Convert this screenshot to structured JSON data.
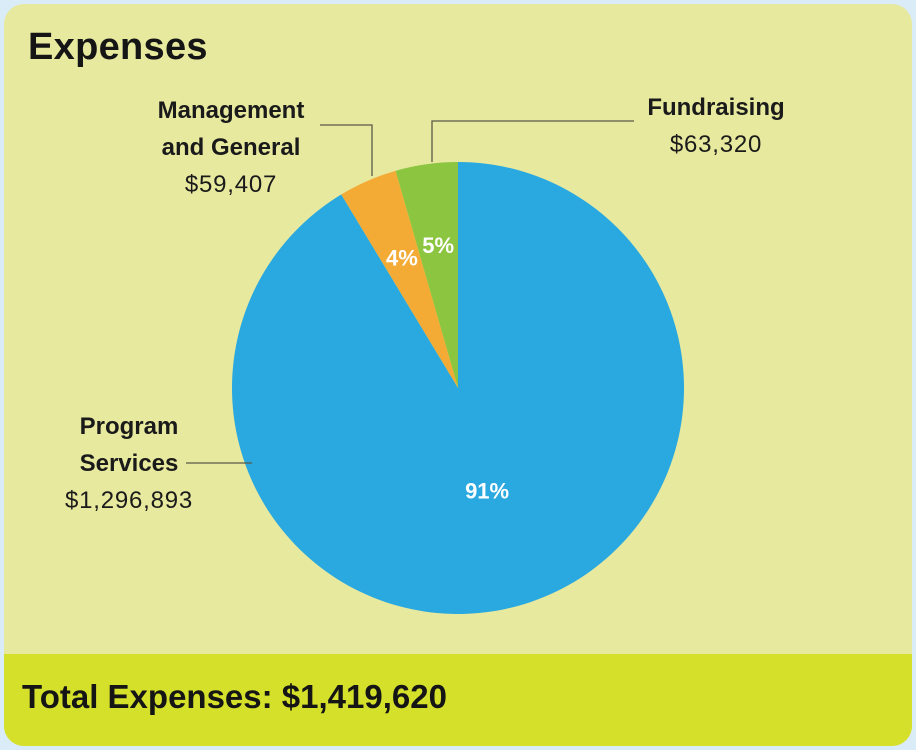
{
  "header": {
    "title": "Expenses"
  },
  "footer": {
    "total": "Total Expenses: $1,419,620"
  },
  "labels": {
    "management": {
      "line1": "Management",
      "line2": "and General",
      "amount": "$59,407"
    },
    "fundraising": {
      "line1": "Fundraising",
      "amount": "$63,320"
    },
    "program": {
      "line1": "Program",
      "line2": "Services",
      "amount": "$1,296,893"
    }
  },
  "colors": {
    "program": "#2aa8e0",
    "management": "#f4ab36",
    "fundraising": "#8cc53f",
    "card_bg": "#e7e99f",
    "footer_bg": "#d4e02a"
  },
  "chart_data": {
    "type": "pie",
    "title": "Expenses",
    "slices": [
      {
        "name": "Fundraising",
        "value": 63320,
        "percent_label": "5%",
        "color": "#8cc53f"
      },
      {
        "name": "Management and General",
        "value": 59407,
        "percent_label": "4%",
        "color": "#f4ab36"
      },
      {
        "name": "Program Services",
        "value": 1296893,
        "percent_label": "91%",
        "color": "#2aa8e0"
      }
    ],
    "start": "top, counter-clockwise",
    "total": 1419620
  }
}
